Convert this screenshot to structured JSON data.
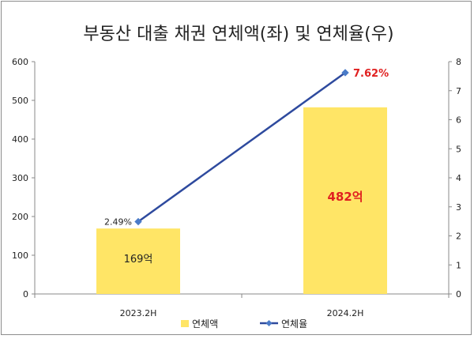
{
  "chart_data": {
    "type": "bar+line",
    "title": "부동산 대출 채권 연체액(좌) 및 연체율(우)",
    "categories": [
      "2023.2H",
      "2024.2H"
    ],
    "series": [
      {
        "name": "연체액",
        "type": "bar",
        "axis": "left",
        "values": [
          169,
          482
        ],
        "data_labels": [
          "169억",
          "482억"
        ],
        "color": "#FFE566"
      },
      {
        "name": "연체율",
        "type": "line",
        "axis": "right",
        "values": [
          2.49,
          7.62
        ],
        "data_labels": [
          "2.49%",
          "7.62%"
        ],
        "color": "#2E4A9E"
      }
    ],
    "y_left": {
      "min": 0,
      "max": 600,
      "step": 100,
      "ticks": [
        "0",
        "100",
        "200",
        "300",
        "400",
        "500",
        "600"
      ]
    },
    "y_right": {
      "min": 0,
      "max": 8,
      "step": 1,
      "ticks": [
        "0",
        "1",
        "2",
        "3",
        "4",
        "5",
        "6",
        "7",
        "8"
      ]
    },
    "grid": false,
    "legend": {
      "position": "bottom",
      "items": [
        "연체액",
        "연체율"
      ]
    },
    "label_colors": {
      "highlight": "#E02020",
      "normal": "#222222"
    }
  }
}
